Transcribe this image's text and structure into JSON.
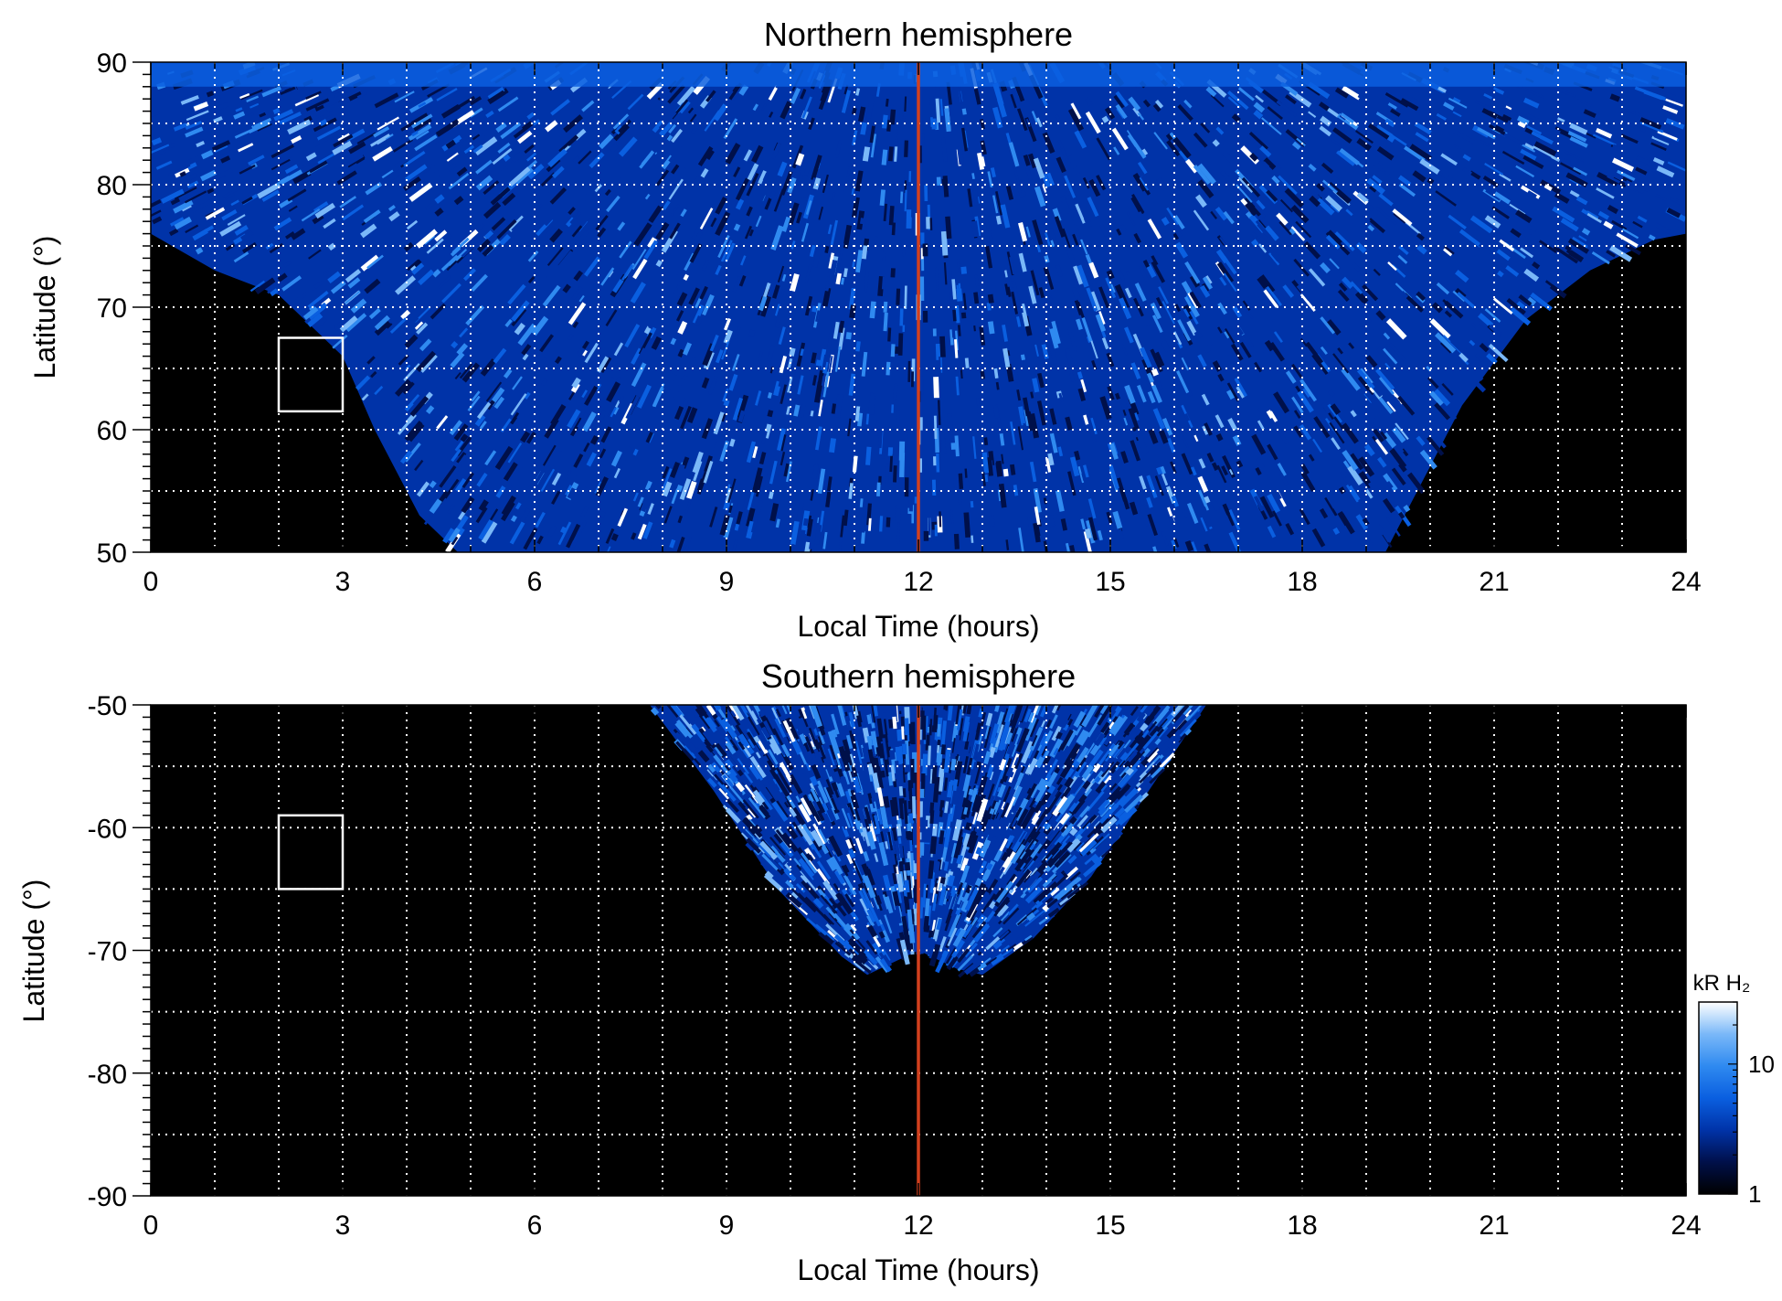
{
  "chart_data": [
    {
      "type": "heatmap",
      "title": "Northern hemisphere",
      "xlabel": "Local Time (hours)",
      "ylabel": "Latitude (°)",
      "xlim": [
        0,
        24
      ],
      "ylim": [
        50,
        90
      ],
      "xticks": [
        "0",
        "3",
        "6",
        "9",
        "12",
        "15",
        "18",
        "21",
        "24"
      ],
      "yticks": [
        "50",
        "60",
        "70",
        "80",
        "90"
      ],
      "grid": true,
      "reference_line": {
        "x": 12,
        "color": "#d2401e"
      },
      "box": {
        "x": [
          2,
          3
        ],
        "y": [
          61.5,
          67.5
        ]
      },
      "coverage": {
        "lat_min_edge": [
          [
            0,
            76
          ],
          [
            1,
            73
          ],
          [
            2,
            71
          ],
          [
            3,
            66
          ],
          [
            3.5,
            60
          ],
          [
            4.2,
            53
          ],
          [
            4.8,
            50
          ],
          [
            19.3,
            50
          ],
          [
            19.8,
            55
          ],
          [
            20.5,
            62
          ],
          [
            21.5,
            69
          ],
          [
            22.5,
            73
          ],
          [
            23.5,
            75.5
          ],
          [
            24,
            76
          ]
        ]
      }
    },
    {
      "type": "heatmap",
      "title": "Southern hemisphere",
      "xlabel": "Local Time (hours)",
      "ylabel": "Latitude (°)",
      "xlim": [
        0,
        24
      ],
      "ylim": [
        -90,
        -50
      ],
      "xticks": [
        "0",
        "3",
        "6",
        "9",
        "12",
        "15",
        "18",
        "21",
        "24"
      ],
      "yticks": [
        "-90",
        "-80",
        "-70",
        "-60",
        "-50"
      ],
      "grid": true,
      "reference_line": {
        "x": 12,
        "color": "#d2401e"
      },
      "box": {
        "x": [
          2,
          3
        ],
        "y": [
          -65,
          -59
        ]
      },
      "coverage": {
        "lat_max_edge": [
          [
            7.8,
            -50
          ],
          [
            8.8,
            -57
          ],
          [
            9.8,
            -65
          ],
          [
            10.8,
            -70.5
          ],
          [
            11.2,
            -72
          ],
          [
            11.6,
            -71
          ],
          [
            12,
            -70
          ],
          [
            12.6,
            -71.5
          ],
          [
            13,
            -72
          ],
          [
            13.8,
            -69
          ],
          [
            14.7,
            -64
          ],
          [
            15.6,
            -57
          ],
          [
            16.5,
            -50
          ]
        ]
      }
    }
  ],
  "colorbar": {
    "label": "kR H₂",
    "ticks": [
      "1",
      "10"
    ],
    "colors": [
      "#000000",
      "#00104a",
      "#0033a8",
      "#0a5fe0",
      "#2f8af0",
      "#7ab8f8",
      "#ffffff"
    ]
  }
}
